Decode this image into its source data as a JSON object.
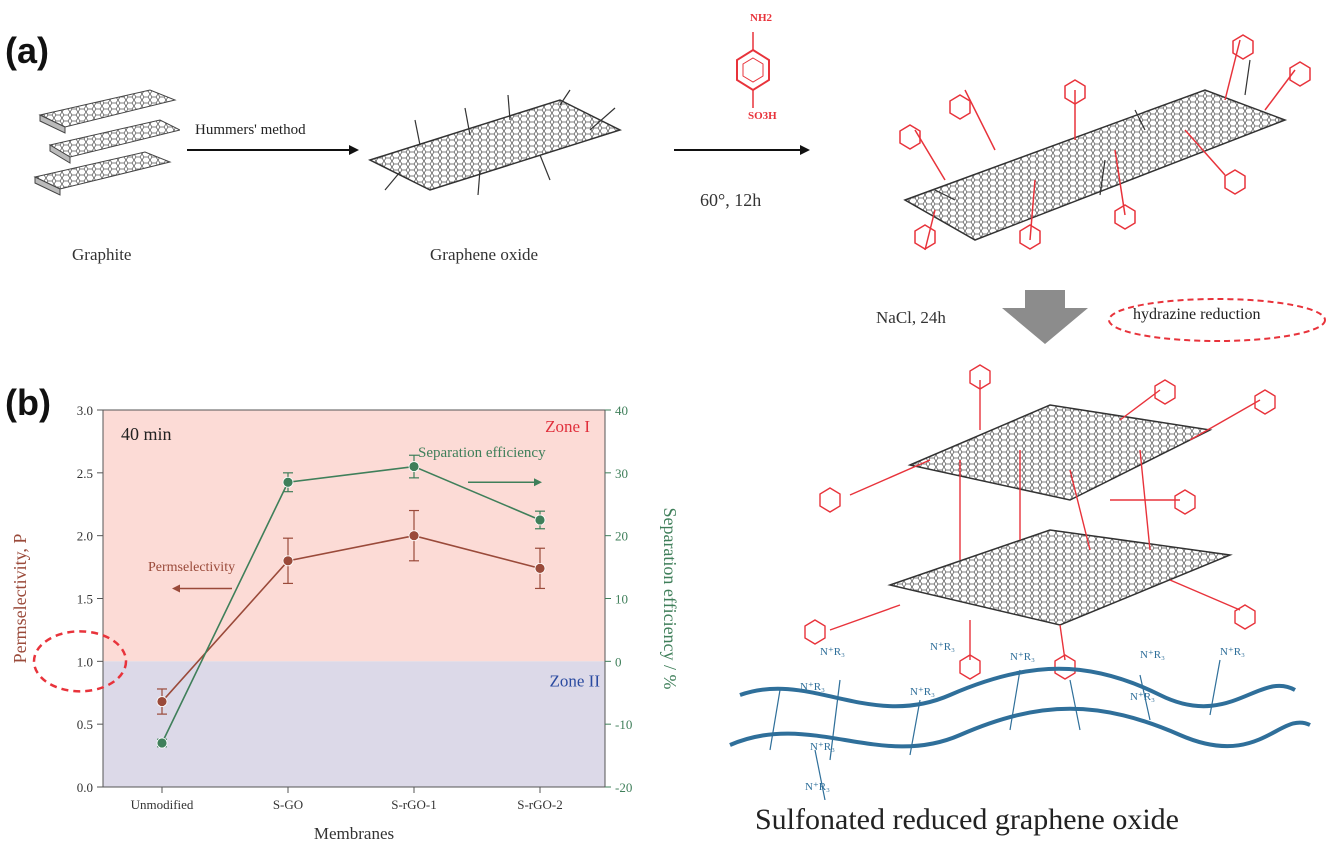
{
  "panel_a": {
    "tag": "(a)",
    "graphite_label": "Graphite",
    "hummers_label": "Hummers' method",
    "go_label": "Graphene oxide",
    "reagent_top": "NH2",
    "reagent_bottom": "SO3H",
    "conditions": "60°, 12h",
    "nacl_label": "NaCl, 24h",
    "hydrazine_label": "hydrazine reduction",
    "final_label": "Sulfonated reduced graphene oxide",
    "colors": {
      "red": "#e8333b",
      "arrow_gray": "#8c8c8c",
      "blue": "#2f6f9a"
    }
  },
  "panel_b": {
    "tag": "(b)",
    "time_label": "40 min",
    "zone1": "Zone I",
    "zone2": "Zone II",
    "perm_anno": "Permselectivity",
    "sep_anno": "Separation efficiency",
    "colors": {
      "zone1_bg": "#fcdbd6",
      "zone2_bg": "#dcd9e8",
      "perm": "#9a4a3a",
      "sep": "#3f7f5a",
      "zone1_text": "#e0303c",
      "zone2_text": "#2a4aa0"
    }
  },
  "chart_data": {
    "type": "line",
    "xlabel": "Membranes",
    "ylabel_left": "Permselectivity, P",
    "ylabel_right": "Separation efficiency / %",
    "categories": [
      "Unmodified",
      "S-GO",
      "S-rGO-1",
      "S-rGO-2"
    ],
    "ylim_left": [
      0.0,
      3.0
    ],
    "ylim_right": [
      -20,
      40
    ],
    "yticks_left": [
      "0.0",
      "0.5",
      "1.0",
      "1.5",
      "2.0",
      "2.5",
      "3.0"
    ],
    "yticks_right": [
      "-20",
      "-10",
      "0",
      "10",
      "20",
      "30",
      "40"
    ],
    "series": [
      {
        "name": "Permselectivity",
        "axis": "left",
        "values": [
          0.68,
          1.8,
          2.0,
          1.74
        ],
        "errors": [
          0.1,
          0.18,
          0.2,
          0.16
        ]
      },
      {
        "name": "Separation efficiency",
        "axis": "right",
        "values": [
          -13,
          28.5,
          31,
          22.5
        ],
        "errors": [
          0.6,
          1.5,
          1.8,
          1.4
        ]
      }
    ],
    "zones": [
      {
        "label": "Zone I",
        "from": 1.0,
        "to": 3.0
      },
      {
        "label": "Zone II",
        "from": 0.0,
        "to": 1.0
      }
    ],
    "legend": "none"
  }
}
